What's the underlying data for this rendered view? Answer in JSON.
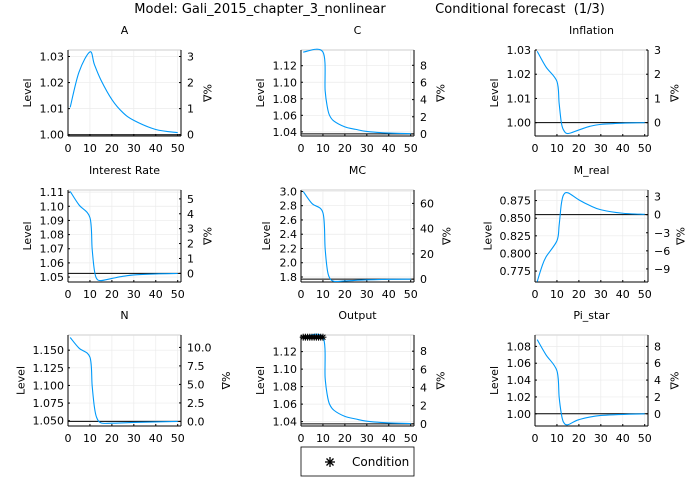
{
  "title_left": "Model: Gali_2015_chapter_3_nonlinear",
  "title_right": "Conditional forecast  (1/3)",
  "legend": {
    "label": "Condition",
    "placement": "bottom-center"
  },
  "colors": {
    "series": "#009AFA",
    "steady_state": "#000000",
    "grid": "#EBEBEB"
  },
  "chart_data": [
    {
      "type": "line",
      "title": "A",
      "ylabel": "Level",
      "y2label": "%Δ",
      "xlim": [
        0,
        50
      ],
      "xticks": [
        0,
        10,
        20,
        30,
        40,
        50
      ],
      "yticks": [
        1.0,
        1.01,
        1.02,
        1.03
      ],
      "ytick_labels": [
        "1.00",
        "1.01",
        "1.02",
        "1.03"
      ],
      "ylim": [
        0.9995,
        1.0325
      ],
      "y2ticks": [
        0,
        1,
        2,
        3
      ],
      "y2tick_labels": [
        "0",
        "1",
        "2",
        "3"
      ],
      "steady_state": 1.0,
      "x": [
        1,
        5,
        10,
        12,
        15,
        20,
        25,
        30,
        40,
        50
      ],
      "y": [
        1.0105,
        1.024,
        1.0318,
        1.027,
        1.021,
        1.0135,
        1.0085,
        1.0055,
        1.002,
        1.0008
      ]
    },
    {
      "type": "line",
      "title": "C",
      "ylabel": "Level",
      "y2label": "%Δ",
      "xlim": [
        0,
        50
      ],
      "xticks": [
        0,
        10,
        20,
        30,
        40,
        50
      ],
      "yticks": [
        1.04,
        1.06,
        1.08,
        1.1,
        1.12
      ],
      "ytick_labels": [
        "1.04",
        "1.06",
        "1.08",
        "1.10",
        "1.12"
      ],
      "ylim": [
        1.035,
        1.139
      ],
      "y2ticks": [
        0,
        2,
        4,
        6,
        8
      ],
      "y2tick_labels": [
        "0",
        "2",
        "4",
        "6",
        "8"
      ],
      "steady_state": 1.0375,
      "x": [
        1,
        10,
        11,
        12,
        13,
        15,
        20,
        25,
        30,
        40,
        50
      ],
      "y": [
        1.1365,
        1.1365,
        1.09,
        1.07,
        1.06,
        1.053,
        1.046,
        1.043,
        1.0405,
        1.0385,
        1.0378
      ]
    },
    {
      "type": "line",
      "title": "Inflation",
      "ylabel": "Level",
      "y2label": "%Δ",
      "xlim": [
        0,
        50
      ],
      "xticks": [
        0,
        10,
        20,
        30,
        40,
        50
      ],
      "yticks": [
        1.0,
        1.01,
        1.02,
        1.03
      ],
      "ytick_labels": [
        "1.00",
        "1.01",
        "1.02",
        "1.03"
      ],
      "ylim": [
        0.9945,
        1.03
      ],
      "y2ticks": [
        0,
        1,
        2,
        3
      ],
      "y2tick_labels": [
        "0",
        "1",
        "2",
        "3"
      ],
      "steady_state": 1.0,
      "x": [
        1,
        5,
        10,
        11,
        12,
        13,
        15,
        20,
        25,
        30,
        40,
        50
      ],
      "y": [
        1.0295,
        1.023,
        1.017,
        1.008,
        1.0,
        0.997,
        0.9955,
        0.997,
        0.9985,
        0.9993,
        0.9998,
        1.0
      ]
    },
    {
      "type": "line",
      "title": "Interest Rate",
      "ylabel": "Level",
      "y2label": "%Δ",
      "xlim": [
        0,
        50
      ],
      "xticks": [
        0,
        10,
        20,
        30,
        40,
        50
      ],
      "yticks": [
        1.05,
        1.06,
        1.07,
        1.08,
        1.09,
        1.1,
        1.11
      ],
      "ytick_labels": [
        "1.05",
        "1.06",
        "1.07",
        "1.08",
        "1.09",
        "1.10",
        "1.11"
      ],
      "ylim": [
        1.0465,
        1.1115
      ],
      "y2ticks": [
        0,
        1,
        2,
        3,
        4,
        5
      ],
      "y2tick_labels": [
        "0",
        "1",
        "2",
        "3",
        "4",
        "5"
      ],
      "steady_state": 1.0526,
      "x": [
        1,
        5,
        10,
        11,
        12,
        13,
        15,
        20,
        25,
        30,
        40,
        50
      ],
      "y": [
        1.1105,
        1.101,
        1.092,
        1.07,
        1.055,
        1.049,
        1.0475,
        1.049,
        1.0505,
        1.0515,
        1.0522,
        1.0525
      ]
    },
    {
      "type": "line",
      "title": "MC",
      "ylabel": "Level",
      "y2label": "%Δ",
      "xlim": [
        0,
        50
      ],
      "xticks": [
        0,
        10,
        20,
        30,
        40,
        50
      ],
      "yticks": [
        1.8,
        2.0,
        2.2,
        2.4,
        2.6,
        2.8,
        3.0
      ],
      "ytick_labels": [
        "1.8",
        "2.0",
        "2.2",
        "2.4",
        "2.6",
        "2.8",
        "3.0"
      ],
      "ylim": [
        1.73,
        3.02
      ],
      "y2ticks": [
        0,
        20,
        40,
        60
      ],
      "y2tick_labels": [
        "0",
        "20",
        "40",
        "60"
      ],
      "steady_state": 1.77,
      "x": [
        1,
        5,
        10,
        11,
        12,
        13,
        15,
        20,
        30,
        40,
        50
      ],
      "y": [
        3.0,
        2.83,
        2.7,
        2.2,
        1.9,
        1.79,
        1.74,
        1.745,
        1.76,
        1.768,
        1.77
      ]
    },
    {
      "type": "line",
      "title": "M_real",
      "ylabel": "Level",
      "y2label": "%Δ",
      "xlim": [
        0,
        50
      ],
      "xticks": [
        0,
        10,
        20,
        30,
        40,
        50
      ],
      "yticks": [
        0.775,
        0.8,
        0.825,
        0.85,
        0.875
      ],
      "ytick_labels": [
        "0.775",
        "0.800",
        "0.825",
        "0.850",
        "0.875"
      ],
      "ylim": [
        0.7595,
        0.89
      ],
      "y2ticks": [
        -9,
        -6,
        -3,
        0,
        3
      ],
      "y2tick_labels": [
        "−9",
        "−6",
        "−3",
        "0",
        "3"
      ],
      "steady_state": 0.855,
      "x": [
        1,
        3,
        5,
        10,
        11,
        12,
        13,
        15,
        20,
        25,
        30,
        40,
        50
      ],
      "y": [
        0.76,
        0.78,
        0.795,
        0.818,
        0.84,
        0.87,
        0.883,
        0.886,
        0.876,
        0.868,
        0.862,
        0.857,
        0.8555
      ]
    },
    {
      "type": "line",
      "title": "N",
      "ylabel": "Level",
      "y2label": "%Δ",
      "xlim": [
        0,
        50
      ],
      "xticks": [
        0,
        10,
        20,
        30,
        40,
        50
      ],
      "yticks": [
        1.05,
        1.075,
        1.1,
        1.125,
        1.15
      ],
      "ytick_labels": [
        "1.050",
        "1.075",
        "1.100",
        "1.125",
        "1.150"
      ],
      "ylim": [
        1.0425,
        1.1715
      ],
      "y2ticks": [
        0,
        2.5,
        5,
        7.5,
        10
      ],
      "y2tick_labels": [
        "0.0",
        "2.5",
        "5.0",
        "7.5",
        "10.0"
      ],
      "steady_state": 1.049,
      "x": [
        1,
        5,
        10,
        11,
        12,
        13,
        15,
        20,
        30,
        50
      ],
      "y": [
        1.168,
        1.153,
        1.14,
        1.1,
        1.07,
        1.055,
        1.047,
        1.0465,
        1.0475,
        1.049
      ]
    },
    {
      "type": "line",
      "title": "Output",
      "ylabel": "Level",
      "y2label": "%Δ",
      "xlim": [
        0,
        50
      ],
      "xticks": [
        0,
        10,
        20,
        30,
        40,
        50
      ],
      "yticks": [
        1.04,
        1.06,
        1.08,
        1.1,
        1.12
      ],
      "ytick_labels": [
        "1.04",
        "1.06",
        "1.08",
        "1.10",
        "1.12"
      ],
      "ylim": [
        1.035,
        1.139
      ],
      "y2ticks": [
        0,
        2,
        4,
        6,
        8
      ],
      "y2tick_labels": [
        "0",
        "2",
        "4",
        "6",
        "8"
      ],
      "steady_state": 1.0375,
      "x": [
        1,
        10,
        11,
        12,
        13,
        15,
        20,
        25,
        30,
        40,
        50
      ],
      "y": [
        1.1365,
        1.1365,
        1.09,
        1.07,
        1.06,
        1.053,
        1.046,
        1.043,
        1.0405,
        1.0385,
        1.0378
      ],
      "conditions": {
        "x": [
          1,
          2,
          3,
          4,
          5,
          6,
          7,
          8,
          9,
          10
        ],
        "y": 1.1365
      }
    },
    {
      "type": "line",
      "title": "Pi_star",
      "ylabel": "Level",
      "y2label": "%Δ",
      "xlim": [
        0,
        50
      ],
      "xticks": [
        0,
        10,
        20,
        30,
        40,
        50
      ],
      "yticks": [
        1.0,
        1.02,
        1.04,
        1.06,
        1.08
      ],
      "ytick_labels": [
        "1.00",
        "1.02",
        "1.04",
        "1.06",
        "1.08"
      ],
      "ylim": [
        0.9855,
        1.0935
      ],
      "y2ticks": [
        0,
        2,
        4,
        6,
        8
      ],
      "y2tick_labels": [
        "0",
        "2",
        "4",
        "6",
        "8"
      ],
      "steady_state": 1.0,
      "x": [
        1,
        5,
        10,
        11,
        12,
        13,
        15,
        20,
        30,
        50
      ],
      "y": [
        1.088,
        1.07,
        1.051,
        1.02,
        1.0,
        0.99,
        0.987,
        0.993,
        0.998,
        1.0
      ]
    }
  ]
}
